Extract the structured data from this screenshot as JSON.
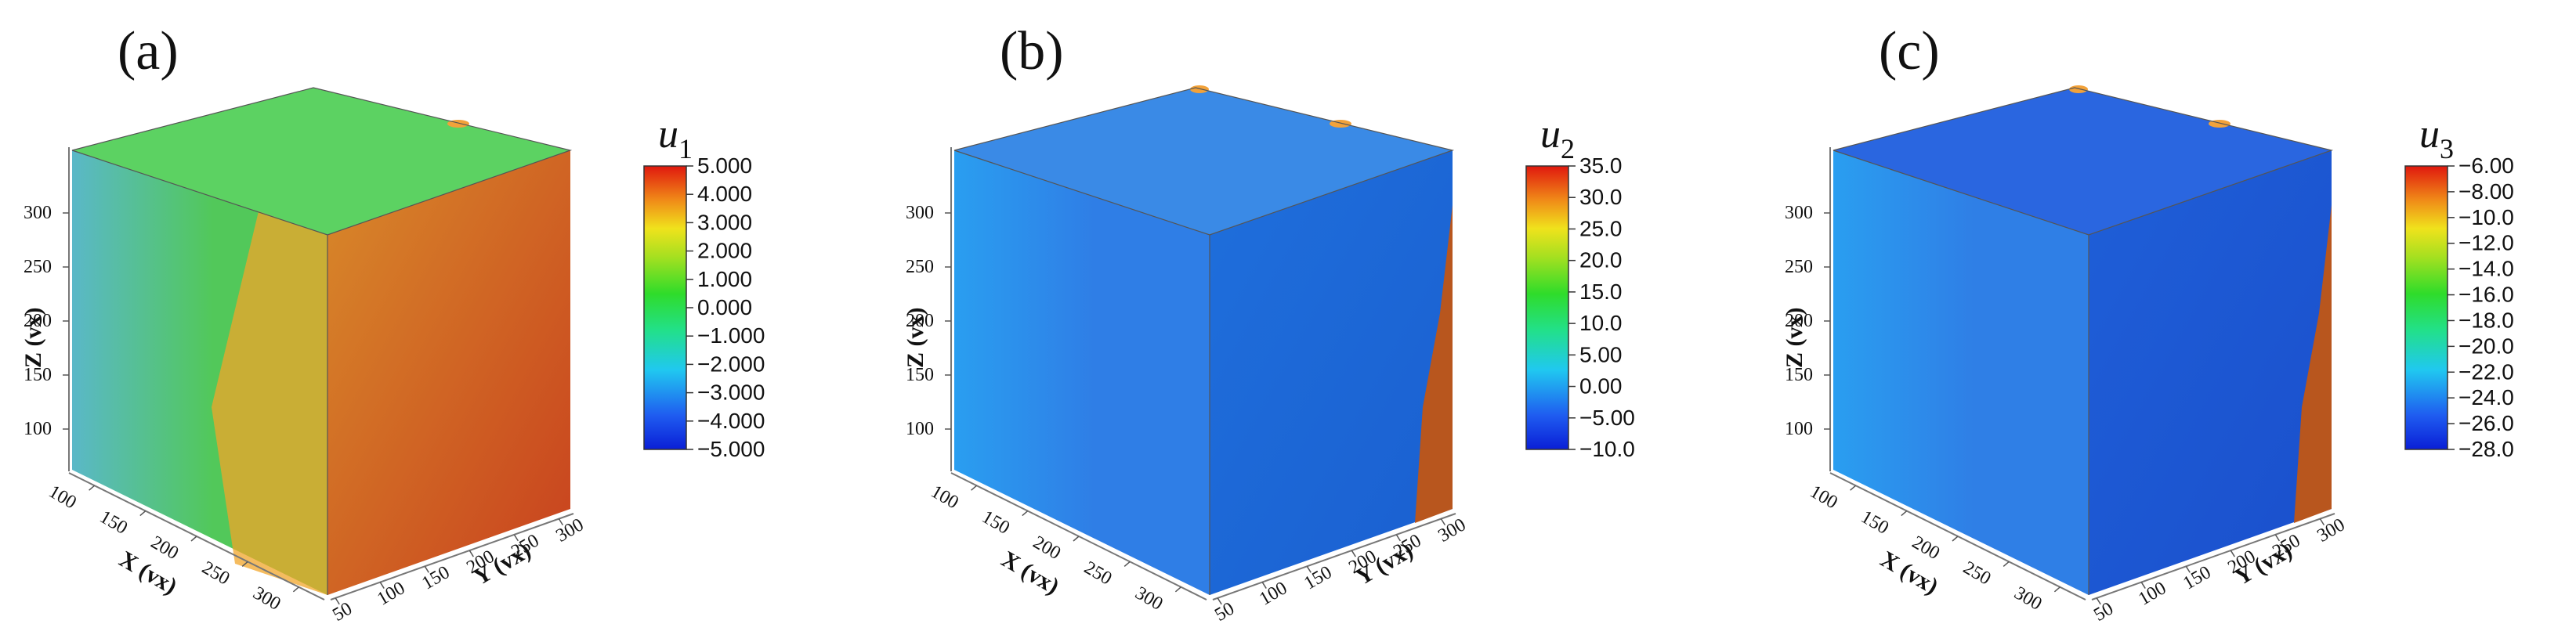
{
  "figure": {
    "panels": [
      {
        "id": "a",
        "label": "(a)",
        "variable": "u",
        "subscript": "1",
        "colorbar_ticks": [
          "5.000",
          "4.000",
          "3.000",
          "2.000",
          "1.000",
          "0.000",
          "−1.000",
          "−2.000",
          "−3.000",
          "−4.000",
          "−5.000"
        ],
        "colors": {
          "left": "#52c85a",
          "top": "#5cd262",
          "front": "#d88a2a",
          "front_deep": "#c8401e",
          "left_cool": "#5ab8c8",
          "hot": "#f2a52a"
        }
      },
      {
        "id": "b",
        "label": "(b)",
        "variable": "u",
        "subscript": "2",
        "colorbar_ticks": [
          "35.0",
          "30.0",
          "25.0",
          "20.0",
          "15.0",
          "10.0",
          "5.00",
          "0.00",
          "−5.00",
          "−10.0"
        ],
        "colors": {
          "left": "#2f7ee6",
          "top": "#3a8ae6",
          "front": "#1f6fdc",
          "front_deep": "#1a5fd0",
          "left_cool": "#2a9ef0",
          "hot": "#b8561e"
        }
      },
      {
        "id": "c",
        "label": "(c)",
        "variable": "u",
        "subscript": "3",
        "colorbar_ticks": [
          "−6.00",
          "−8.00",
          "−10.0",
          "−12.0",
          "−14.0",
          "−16.0",
          "−18.0",
          "−20.0",
          "−22.0",
          "−24.0",
          "−26.0",
          "−28.0"
        ],
        "colors": {
          "left": "#2f7fe6",
          "top": "#2a66e0",
          "front": "#1f5fd8",
          "front_deep": "#1a4fcc",
          "left_cool": "#2a9ef0",
          "hot": "#b8561e"
        }
      }
    ],
    "axes": {
      "z_label": "Z (vx)",
      "x_label": "X (vx)",
      "y_label": "Y (vx)",
      "z_ticks": [
        "300",
        "250",
        "200",
        "150",
        "100"
      ],
      "x_ticks": [
        "100",
        "150",
        "200",
        "250",
        "300"
      ],
      "y_ticks": [
        "50",
        "100",
        "150",
        "200",
        "250",
        "300"
      ]
    }
  },
  "chart_data": [
    {
      "type": "heatmap",
      "panel": "(a)",
      "quantity": "u1",
      "colorbar_range": [
        -5.0,
        5.0
      ],
      "colorbar_ticks": [
        5.0,
        4.0,
        3.0,
        2.0,
        1.0,
        0.0,
        -1.0,
        -2.0,
        -3.0,
        -4.0,
        -5.0
      ],
      "axes": {
        "x": {
          "label": "X (vx)",
          "ticks": [
            100,
            150,
            200,
            250,
            300
          ]
        },
        "y": {
          "label": "Y (vx)",
          "ticks": [
            50,
            100,
            150,
            200,
            250,
            300
          ]
        },
        "z": {
          "label": "Z (vx)",
          "ticks": [
            100,
            150,
            200,
            250,
            300
          ]
        }
      }
    },
    {
      "type": "heatmap",
      "panel": "(b)",
      "quantity": "u2",
      "colorbar_range": [
        -10.0,
        35.0
      ],
      "colorbar_ticks": [
        35.0,
        30.0,
        25.0,
        20.0,
        15.0,
        10.0,
        5.0,
        0.0,
        -5.0,
        -10.0
      ],
      "axes": {
        "x": {
          "label": "X (vx)",
          "ticks": [
            100,
            150,
            200,
            250,
            300
          ]
        },
        "y": {
          "label": "Y (vx)",
          "ticks": [
            50,
            100,
            150,
            200,
            250,
            300
          ]
        },
        "z": {
          "label": "Z (vx)",
          "ticks": [
            100,
            150,
            200,
            250,
            300
          ]
        }
      }
    },
    {
      "type": "heatmap",
      "panel": "(c)",
      "quantity": "u3",
      "colorbar_range": [
        -28.0,
        -6.0
      ],
      "colorbar_ticks": [
        -6.0,
        -8.0,
        -10.0,
        -12.0,
        -14.0,
        -16.0,
        -18.0,
        -20.0,
        -22.0,
        -24.0,
        -26.0,
        -28.0
      ],
      "axes": {
        "x": {
          "label": "X (vx)",
          "ticks": [
            100,
            150,
            200,
            250,
            300
          ]
        },
        "y": {
          "label": "Y (vx)",
          "ticks": [
            50,
            100,
            150,
            200,
            250,
            300
          ]
        },
        "z": {
          "label": "Z (vx)",
          "ticks": [
            100,
            150,
            200,
            250,
            300
          ]
        }
      }
    }
  ]
}
